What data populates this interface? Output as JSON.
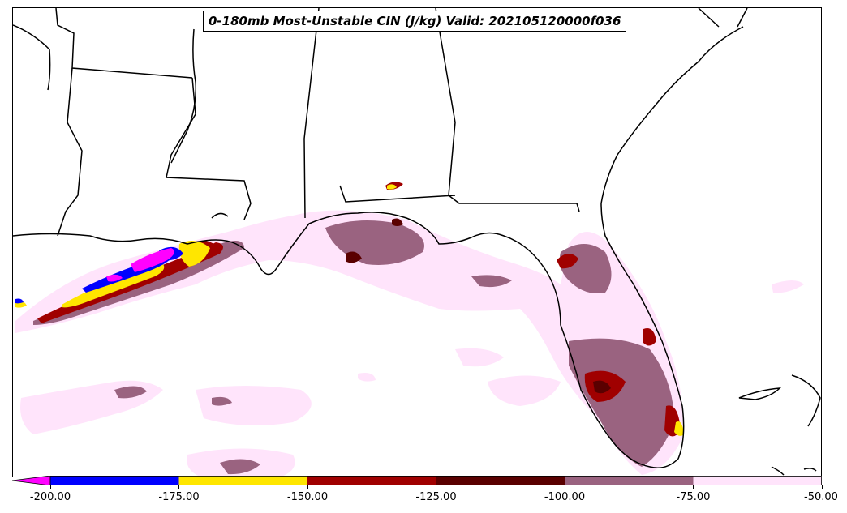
{
  "title": "0-180mb Most-Unstable CIN (J/kg) Valid: 202105120000f036",
  "colors": {
    "below_-200": "#ff00ff",
    "-200_to_-175": "#0000ff",
    "-175_to_-150": "#ffe600",
    "-150_to_-125": "#a00000",
    "-125_to_-100": "#5a0000",
    "-100_to_-75": "#9a6380",
    "-75_to_-50": "#ffe4fb",
    "coastline": "#000000",
    "background": "#ffffff"
  },
  "colorbar": {
    "extend": "min",
    "levels": [
      -200,
      -175,
      -150,
      -125,
      -100,
      -75,
      -50
    ],
    "tick_labels": [
      "-200.00",
      "-175.00",
      "-150.00",
      "-125.00",
      "-100.00",
      "-75.00",
      "-50.00"
    ]
  }
}
